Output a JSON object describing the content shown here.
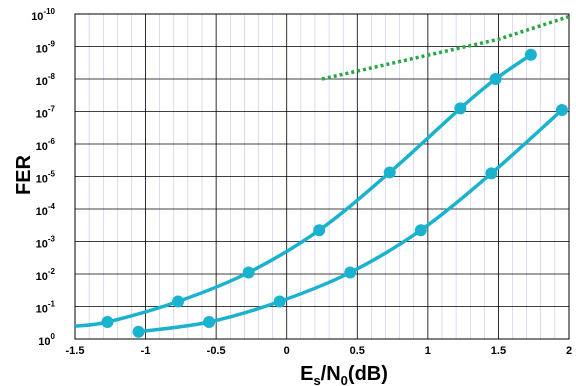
{
  "chart_data": {
    "type": "line",
    "title": "",
    "xlabel": {
      "main": "E",
      "sub": "s",
      "mid": "/N",
      "sub2": "0",
      "tail": "(dB)"
    },
    "ylabel": "FER",
    "xlim": [
      -1.5,
      2
    ],
    "ylim_log10": [
      -10,
      0
    ],
    "y_scale": "log",
    "grid": true,
    "x_ticks": [
      -1.5,
      -1,
      -0.5,
      0,
      0.5,
      1,
      1.5,
      2
    ],
    "x_tick_labels": [
      "-1.5",
      "-1",
      "-0.5",
      "0",
      "0.5",
      "1",
      "1.5",
      "2"
    ],
    "y_tick_exponents": [
      0,
      -1,
      -2,
      -3,
      -4,
      -5,
      -6,
      -7,
      -8,
      -9,
      -10
    ],
    "y_tick_base": "10",
    "colors": {
      "series": "#1ab2cf",
      "bound": "#27a844",
      "grid_major": "#000000",
      "grid_minor": "#b8b8e6"
    },
    "series": [
      {
        "style": "solid-marker",
        "x": [
          -1.05,
          -0.55,
          -0.05,
          0.45,
          0.95,
          1.45,
          1.95
        ],
        "y": [
          0.6,
          0.3,
          0.07,
          0.009,
          0.00045,
          8e-06,
          9e-08
        ]
      },
      {
        "style": "solid-marker",
        "x": [
          -1.5,
          -1.27,
          -0.77,
          -0.27,
          0.23,
          0.73,
          1.23,
          1.48,
          1.73
        ],
        "y": [
          0.4,
          0.3,
          0.07,
          0.009,
          0.00045,
          7.5e-06,
          8e-08,
          1e-08,
          1.8e-09
        ],
        "marker_start_index": 1
      },
      {
        "style": "dotted",
        "x": [
          0.25,
          1.5,
          2.0
        ],
        "y": [
          1e-08,
          6e-10,
          1.2e-10
        ]
      }
    ]
  }
}
